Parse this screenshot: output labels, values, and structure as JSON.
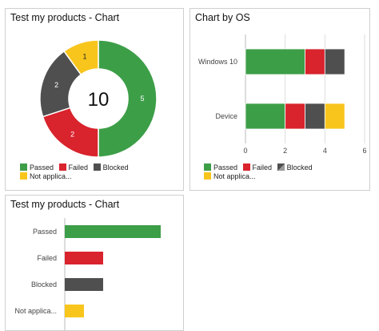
{
  "colors": {
    "passed": "#3d9e48",
    "failed": "#d9232d",
    "blocked": "#4f4f4f",
    "not_applicable": "#f8c51c",
    "grid": "#dddddd",
    "axis": "#bbbbbb"
  },
  "panels": {
    "donut_title": "Test my products - Chart",
    "os_title": "Chart by OS",
    "hbar_title": "Test my products - Chart"
  },
  "donut_legend": [
    "Passed",
    "Failed",
    "Blocked",
    "Not applica..."
  ],
  "os_legend": [
    "Passed",
    "Failed",
    "Blocked",
    "Not applica..."
  ],
  "chart_data": [
    {
      "type": "pie",
      "variant": "donut",
      "title": "Test my products - Chart",
      "center_label": "10",
      "categories": [
        "Passed",
        "Failed",
        "Blocked",
        "Not applica..."
      ],
      "values": [
        5,
        2,
        2,
        1
      ],
      "value_labels": [
        "5",
        "2",
        "2",
        "1"
      ],
      "legend": "bottom"
    },
    {
      "type": "bar",
      "orientation": "horizontal",
      "stacked": true,
      "title": "Chart by OS",
      "categories": [
        "Windows 10",
        "Device"
      ],
      "series": [
        {
          "name": "Passed",
          "values": [
            3,
            2
          ]
        },
        {
          "name": "Failed",
          "values": [
            1,
            1
          ]
        },
        {
          "name": "Blocked",
          "values": [
            1,
            1
          ]
        },
        {
          "name": "Not applica...",
          "values": [
            0,
            1
          ]
        }
      ],
      "xlim": [
        0,
        6
      ],
      "xticks": [
        "0",
        "2",
        "4",
        "6"
      ],
      "grid": true,
      "legend": "bottom"
    },
    {
      "type": "bar",
      "orientation": "horizontal",
      "title": "Test my products - Chart",
      "categories": [
        "Passed",
        "Failed",
        "Blocked",
        "Not applica..."
      ],
      "values": [
        5,
        2,
        2,
        1
      ],
      "xlim": [
        0,
        6
      ]
    }
  ]
}
